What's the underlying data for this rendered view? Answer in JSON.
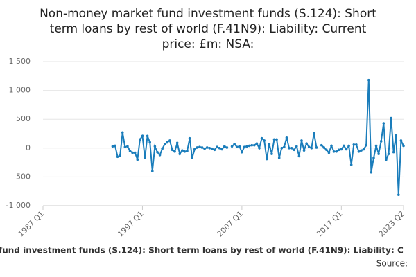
{
  "chart_data": {
    "type": "line",
    "title": [
      "Non-money market fund investment funds (S.124): Short",
      "term loans by rest of world (F.41N9): Liability: Current",
      "price: £m: NSA:"
    ],
    "footer": "fund investment funds (S.124): Short term loans by rest of world (F.41N9): Liability: C",
    "source": "Source:",
    "categories": [
      "1987 Q1",
      null,
      null,
      null,
      null,
      null,
      null,
      null,
      null,
      null,
      null,
      null,
      null,
      null,
      null,
      null,
      null,
      null,
      null,
      null,
      null,
      null,
      null,
      null,
      null,
      null,
      null,
      null,
      null,
      null,
      null,
      null,
      null,
      null,
      null,
      null,
      null,
      null,
      null,
      null,
      "1997 Q1",
      null,
      null,
      null,
      null,
      null,
      null,
      null,
      null,
      null,
      null,
      null,
      null,
      null,
      null,
      null,
      null,
      null,
      null,
      null,
      null,
      null,
      null,
      null,
      null,
      null,
      null,
      null,
      null,
      null,
      null,
      null,
      null,
      null,
      null,
      null,
      null,
      null,
      null,
      null,
      "2007 Q1",
      null,
      null,
      null,
      null,
      null,
      null,
      null,
      null,
      null,
      null,
      null,
      null,
      null,
      null,
      null,
      null,
      null,
      null,
      null,
      null,
      null,
      null,
      null,
      null,
      null,
      null,
      null,
      null,
      null,
      null,
      null,
      null,
      null,
      null,
      null,
      null,
      null,
      null,
      null,
      "2017 Q1",
      null,
      null,
      null,
      null,
      null,
      null,
      null,
      null,
      null,
      null,
      null,
      null,
      null,
      null,
      null,
      null,
      null,
      null,
      null,
      null,
      null,
      null,
      null,
      null,
      "2023 Q2"
    ],
    "values": [
      null,
      null,
      null,
      null,
      null,
      null,
      null,
      null,
      null,
      null,
      null,
      null,
      null,
      null,
      null,
      null,
      null,
      null,
      null,
      null,
      null,
      null,
      null,
      null,
      null,
      null,
      null,
      null,
      30,
      40,
      -150,
      -130,
      270,
      20,
      30,
      -50,
      -80,
      -80,
      -200,
      150,
      210,
      -170,
      210,
      100,
      -400,
      30,
      -70,
      -120,
      -10,
      70,
      100,
      130,
      -30,
      -60,
      90,
      -100,
      -40,
      -60,
      -50,
      170,
      -170,
      -20,
      10,
      20,
      10,
      -10,
      10,
      0,
      -10,
      -30,
      20,
      0,
      -20,
      30,
      10,
      null,
      30,
      70,
      20,
      30,
      -70,
      20,
      30,
      40,
      50,
      50,
      80,
      0,
      170,
      130,
      -190,
      70,
      -100,
      150,
      150,
      -170,
      0,
      20,
      180,
      0,
      0,
      -30,
      30,
      -140,
      130,
      -40,
      80,
      20,
      0,
      260,
      10,
      null,
      50,
      10,
      -30,
      -80,
      40,
      -60,
      -60,
      -30,
      -20,
      40,
      -20,
      40,
      -290,
      60,
      60,
      -60,
      -40,
      -20,
      50,
      1180,
      -420,
      -170,
      40,
      -100,
      120,
      430,
      -200,
      -100,
      520,
      -70,
      220,
      -810,
      130,
      40
    ],
    "color": "#1a7dbb",
    "ylim": [
      -1000,
      1500
    ],
    "yticks": [
      {
        "value": -1000,
        "label": "-1 000"
      },
      -500,
      0,
      500,
      {
        "value": 1000,
        "label": "1 000"
      },
      {
        "value": 1500,
        "label": "1 500"
      }
    ],
    "grid": true
  }
}
